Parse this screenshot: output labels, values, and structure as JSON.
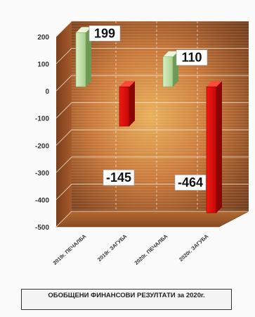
{
  "chart_data": {
    "type": "bar",
    "categories": [
      "2019г. ПЕЧАЛБА",
      "2019г. ЗАГУБА",
      "2020г. ПЕЧАЛБА",
      "2020г. ЗАГУБА"
    ],
    "values": [
      199,
      -145,
      110,
      -464
    ],
    "data_labels": [
      "199",
      "-145",
      "110",
      "-464"
    ],
    "ylim": [
      -500,
      200
    ],
    "yticks": [
      200,
      100,
      0,
      -100,
      -200,
      -300,
      -400,
      -500
    ],
    "ytick_labels": [
      "200",
      "100",
      "0",
      "-100",
      "-200",
      "-300",
      "-400",
      "-500"
    ],
    "grid": true,
    "three_d": true,
    "colors": {
      "profit": "#c8e6b0",
      "loss": "#e01010"
    },
    "caption": "ОБОБЩЕНИ ФИНАНСОВИ РЕЗУЛТАТИ за 2020г."
  }
}
